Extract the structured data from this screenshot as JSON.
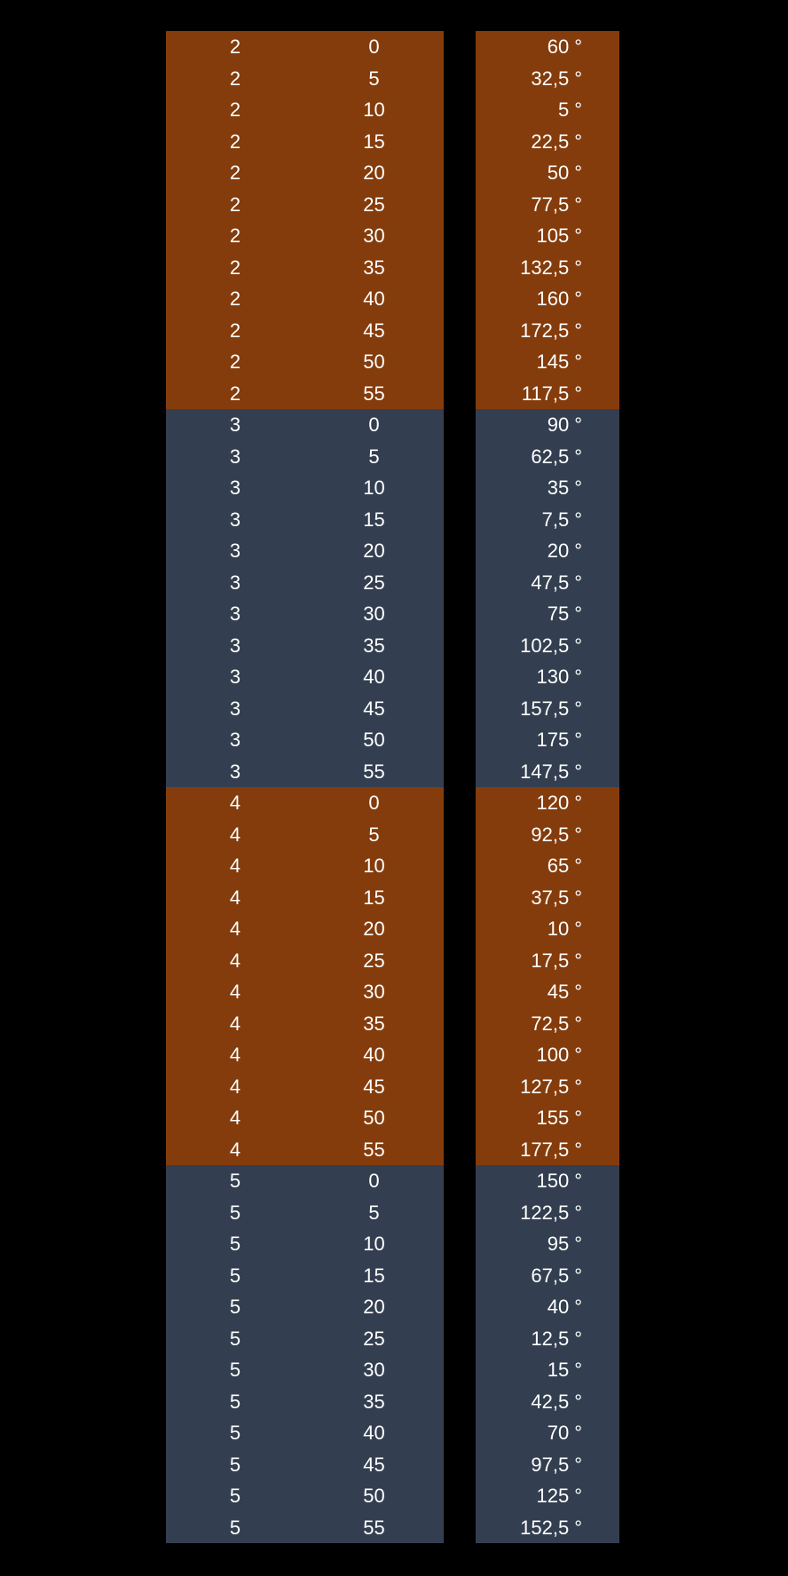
{
  "colors": {
    "background": "#000000",
    "even_group": "#843c0c",
    "odd_group": "#333f50",
    "text": "#ffffff"
  },
  "degree_symbol": "°",
  "rows": [
    {
      "hour": "2",
      "minute": "0",
      "angle": "60"
    },
    {
      "hour": "2",
      "minute": "5",
      "angle": "32,5"
    },
    {
      "hour": "2",
      "minute": "10",
      "angle": "5"
    },
    {
      "hour": "2",
      "minute": "15",
      "angle": "22,5"
    },
    {
      "hour": "2",
      "minute": "20",
      "angle": "50"
    },
    {
      "hour": "2",
      "minute": "25",
      "angle": "77,5"
    },
    {
      "hour": "2",
      "minute": "30",
      "angle": "105"
    },
    {
      "hour": "2",
      "minute": "35",
      "angle": "132,5"
    },
    {
      "hour": "2",
      "minute": "40",
      "angle": "160"
    },
    {
      "hour": "2",
      "minute": "45",
      "angle": "172,5"
    },
    {
      "hour": "2",
      "minute": "50",
      "angle": "145"
    },
    {
      "hour": "2",
      "minute": "55",
      "angle": "117,5"
    },
    {
      "hour": "3",
      "minute": "0",
      "angle": "90"
    },
    {
      "hour": "3",
      "minute": "5",
      "angle": "62,5"
    },
    {
      "hour": "3",
      "minute": "10",
      "angle": "35"
    },
    {
      "hour": "3",
      "minute": "15",
      "angle": "7,5"
    },
    {
      "hour": "3",
      "minute": "20",
      "angle": "20"
    },
    {
      "hour": "3",
      "minute": "25",
      "angle": "47,5"
    },
    {
      "hour": "3",
      "minute": "30",
      "angle": "75"
    },
    {
      "hour": "3",
      "minute": "35",
      "angle": "102,5"
    },
    {
      "hour": "3",
      "minute": "40",
      "angle": "130"
    },
    {
      "hour": "3",
      "minute": "45",
      "angle": "157,5"
    },
    {
      "hour": "3",
      "minute": "50",
      "angle": "175"
    },
    {
      "hour": "3",
      "minute": "55",
      "angle": "147,5"
    },
    {
      "hour": "4",
      "minute": "0",
      "angle": "120"
    },
    {
      "hour": "4",
      "minute": "5",
      "angle": "92,5"
    },
    {
      "hour": "4",
      "minute": "10",
      "angle": "65"
    },
    {
      "hour": "4",
      "minute": "15",
      "angle": "37,5"
    },
    {
      "hour": "4",
      "minute": "20",
      "angle": "10"
    },
    {
      "hour": "4",
      "minute": "25",
      "angle": "17,5"
    },
    {
      "hour": "4",
      "minute": "30",
      "angle": "45"
    },
    {
      "hour": "4",
      "minute": "35",
      "angle": "72,5"
    },
    {
      "hour": "4",
      "minute": "40",
      "angle": "100"
    },
    {
      "hour": "4",
      "minute": "45",
      "angle": "127,5"
    },
    {
      "hour": "4",
      "minute": "50",
      "angle": "155"
    },
    {
      "hour": "4",
      "minute": "55",
      "angle": "177,5"
    },
    {
      "hour": "5",
      "minute": "0",
      "angle": "150"
    },
    {
      "hour": "5",
      "minute": "5",
      "angle": "122,5"
    },
    {
      "hour": "5",
      "minute": "10",
      "angle": "95"
    },
    {
      "hour": "5",
      "minute": "15",
      "angle": "67,5"
    },
    {
      "hour": "5",
      "minute": "20",
      "angle": "40"
    },
    {
      "hour": "5",
      "minute": "25",
      "angle": "12,5"
    },
    {
      "hour": "5",
      "minute": "30",
      "angle": "15"
    },
    {
      "hour": "5",
      "minute": "35",
      "angle": "42,5"
    },
    {
      "hour": "5",
      "minute": "40",
      "angle": "70"
    },
    {
      "hour": "5",
      "minute": "45",
      "angle": "97,5"
    },
    {
      "hour": "5",
      "minute": "50",
      "angle": "125"
    },
    {
      "hour": "5",
      "minute": "55",
      "angle": "152,5"
    }
  ]
}
